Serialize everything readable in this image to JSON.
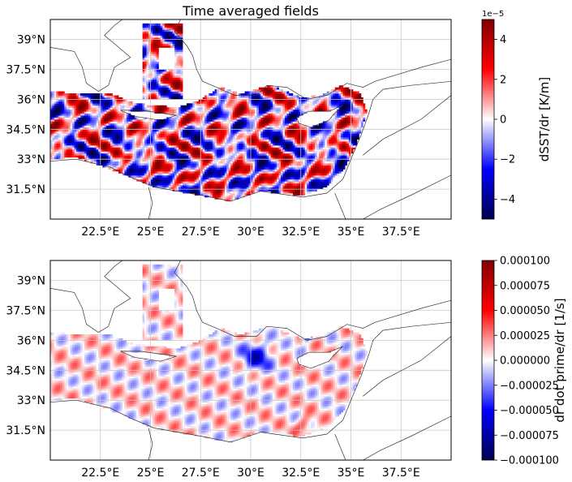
{
  "chart_data": [
    {
      "type": "heatmap",
      "title": "Time averaged fields",
      "xlabel": "",
      "ylabel": "",
      "x_ticks": [
        "22.5°E",
        "25°E",
        "27.5°E",
        "30°E",
        "32.5°E",
        "35°E",
        "37.5°E"
      ],
      "x_tick_values": [
        22.5,
        25,
        27.5,
        30,
        32.5,
        35,
        37.5
      ],
      "y_ticks": [
        "39°N",
        "37.5°N",
        "36°N",
        "34.5°N",
        "33°N",
        "31.5°N"
      ],
      "y_tick_values": [
        39,
        37.5,
        36,
        34.5,
        33,
        31.5
      ],
      "xlim": [
        20,
        40
      ],
      "ylim": [
        30,
        40
      ],
      "grid": true,
      "colormap": "seismic",
      "colorbar": {
        "label": "dSST/dr [K/m]",
        "offset_text": "1e−5",
        "ticks": [
          "4",
          "2",
          "0",
          "−2",
          "−4"
        ],
        "tick_values": [
          4,
          2,
          0,
          -2,
          -4
        ],
        "range": [
          -5,
          5
        ]
      }
    },
    {
      "type": "heatmap",
      "title": "",
      "xlabel": "",
      "ylabel": "",
      "x_ticks": [
        "22.5°E",
        "25°E",
        "27.5°E",
        "30°E",
        "32.5°E",
        "35°E",
        "37.5°E"
      ],
      "x_tick_values": [
        22.5,
        25,
        27.5,
        30,
        32.5,
        35,
        37.5
      ],
      "y_ticks": [
        "39°N",
        "37.5°N",
        "36°N",
        "34.5°N",
        "33°N",
        "31.5°N"
      ],
      "y_tick_values": [
        39,
        37.5,
        36,
        34.5,
        33,
        31.5
      ],
      "xlim": [
        20,
        40
      ],
      "ylim": [
        30,
        40
      ],
      "grid": true,
      "colormap": "seismic",
      "colorbar": {
        "label": "dr dot prime/dr [1/s]",
        "offset_text": "",
        "ticks": [
          "0.000100",
          "0.000075",
          "0.000050",
          "0.000025",
          "0.000000",
          "−0.000025",
          "−0.000050",
          "−0.000075",
          "−0.000100"
        ],
        "tick_values": [
          0.0001,
          7.5e-05,
          5e-05,
          2.5e-05,
          0,
          -2.5e-05,
          -5e-05,
          -7.5e-05,
          -0.0001
        ],
        "range": [
          -0.0001,
          0.0001
        ]
      }
    }
  ]
}
